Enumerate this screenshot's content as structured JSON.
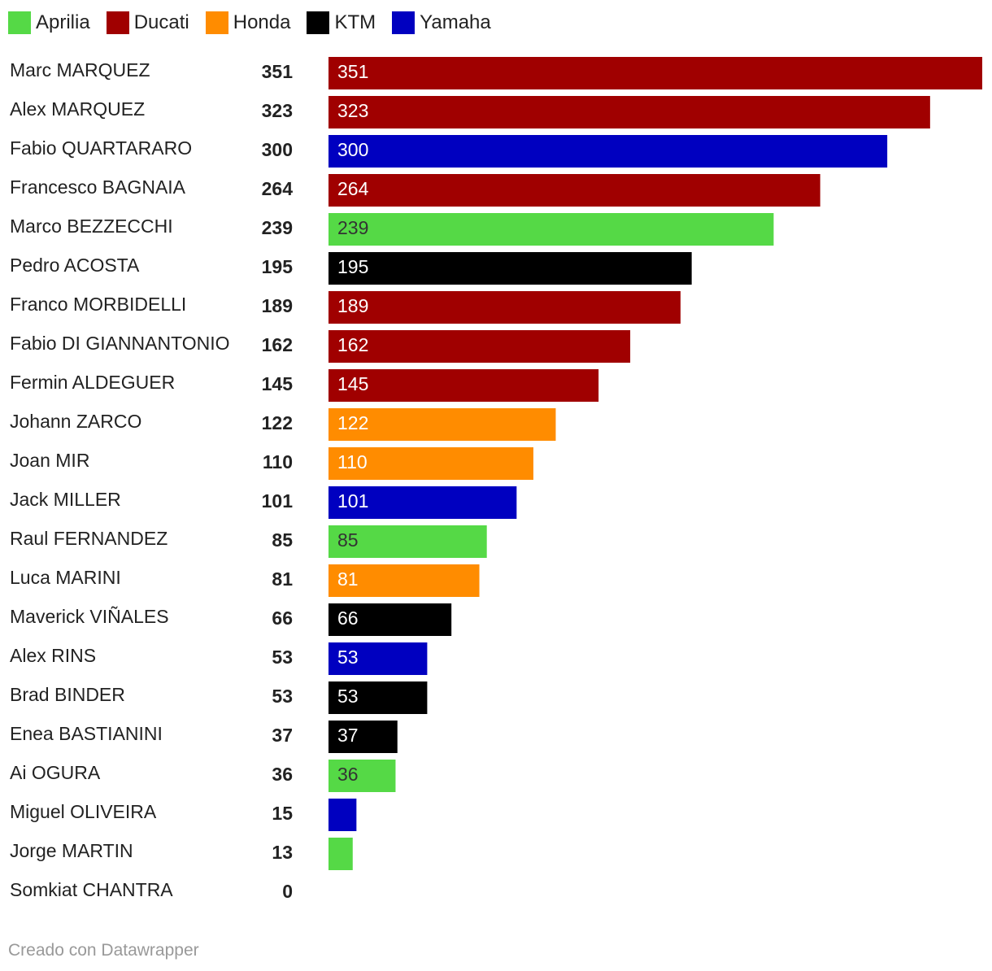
{
  "legend": [
    {
      "label": "Aprilia",
      "color": "#55d946"
    },
    {
      "label": "Ducati",
      "color": "#a00000"
    },
    {
      "label": "Honda",
      "color": "#ff8c00"
    },
    {
      "label": "KTM",
      "color": "#000000"
    },
    {
      "label": "Yamaha",
      "color": "#0000c0"
    }
  ],
  "footer": "Creado con Datawrapper",
  "chart_data": {
    "type": "bar",
    "orientation": "horizontal",
    "categories": [
      "Marc MARQUEZ",
      "Alex MARQUEZ",
      "Fabio QUARTARARO",
      "Francesco BAGNAIA",
      "Marco BEZZECCHI",
      "Pedro ACOSTA",
      "Franco MORBIDELLI",
      "Fabio DI GIANNANTONIO",
      "Fermin ALDEGUER",
      "Johann ZARCO",
      "Joan MIR",
      "Jack MILLER",
      "Raul FERNANDEZ",
      "Luca MARINI",
      "Maverick VIÑALES",
      "Alex RINS",
      "Brad BINDER",
      "Enea BASTIANINI",
      "Ai OGURA",
      "Miguel OLIVEIRA",
      "Jorge MARTIN",
      "Somkiat CHANTRA"
    ],
    "values": [
      351,
      323,
      300,
      264,
      239,
      195,
      189,
      162,
      145,
      122,
      110,
      101,
      85,
      81,
      66,
      53,
      53,
      37,
      36,
      15,
      13,
      0
    ],
    "teams": [
      "Ducati",
      "Ducati",
      "Yamaha",
      "Ducati",
      "Aprilia",
      "KTM",
      "Ducati",
      "Ducati",
      "Ducati",
      "Honda",
      "Honda",
      "Yamaha",
      "Aprilia",
      "Honda",
      "KTM",
      "Yamaha",
      "KTM",
      "KTM",
      "Aprilia",
      "Yamaha",
      "Aprilia",
      "Honda"
    ],
    "title": "",
    "xlabel": "",
    "ylabel": "",
    "xlim": [
      0,
      351
    ],
    "grid": false,
    "legend_position": "top-left"
  }
}
